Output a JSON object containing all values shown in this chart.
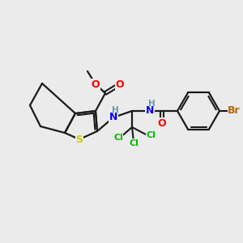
{
  "bg_color": "#ebebeb",
  "bond_color": "#1a1a1a",
  "atom_colors": {
    "O": "#ff0000",
    "N": "#0000ee",
    "S": "#cccc00",
    "Cl": "#00bb00",
    "Br": "#bb6600",
    "H_label": "#6699aa",
    "C": "#1a1a1a"
  },
  "figsize": [
    3.0,
    3.0
  ],
  "dpi": 100
}
